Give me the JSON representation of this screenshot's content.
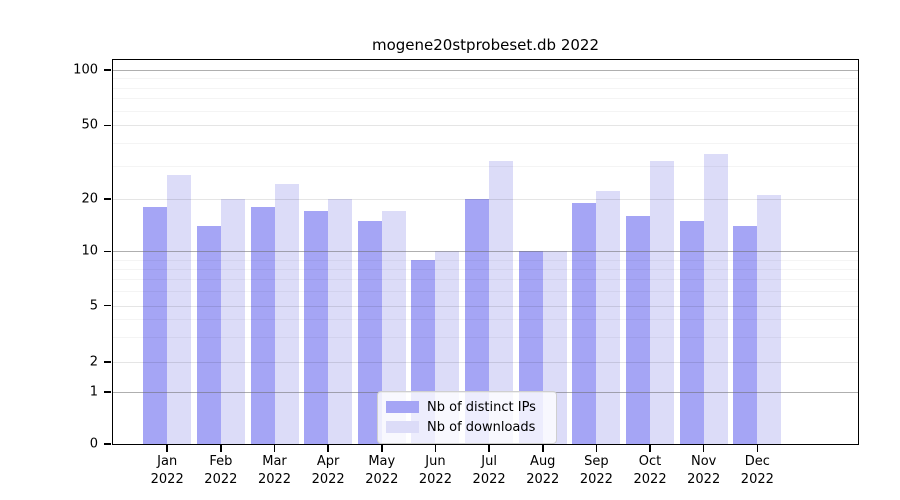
{
  "title": "mogene20stprobeset.db 2022",
  "colors": {
    "ips_bar": "#a5a5f5",
    "downloads_bar": "#dcdcf8",
    "frame": "#000000",
    "decade_gridline": "#9e9e9e",
    "sub_gridline": "#e6e6e6",
    "minor_gridline": "#f3f3f3"
  },
  "y_axis": {
    "tick_labels": [
      "100",
      "50",
      "20",
      "10",
      "5",
      "2",
      "1",
      "0"
    ]
  },
  "x_axis": {
    "year_line": "2022",
    "month_lines": [
      "Jan",
      "Feb",
      "Mar",
      "Apr",
      "May",
      "Jun",
      "Jul",
      "Aug",
      "Sep",
      "Oct",
      "Nov",
      "Dec"
    ]
  },
  "legend": {
    "items": [
      {
        "label": "Nb of distinct IPs",
        "color_key": "ips_bar"
      },
      {
        "label": "Nb of downloads",
        "color_key": "downloads_bar"
      }
    ]
  },
  "chart_data": {
    "type": "bar",
    "title": "mogene20stprobeset.db 2022",
    "categories": [
      "Jan 2022",
      "Feb 2022",
      "Mar 2022",
      "Apr 2022",
      "May 2022",
      "Jun 2022",
      "Jul 2022",
      "Aug 2022",
      "Sep 2022",
      "Oct 2022",
      "Nov 2022",
      "Dec 2022"
    ],
    "series": [
      {
        "name": "Nb of distinct IPs",
        "values": [
          18,
          14,
          18,
          17,
          15,
          9,
          20,
          10,
          19,
          16,
          15,
          14
        ]
      },
      {
        "name": "Nb of downloads",
        "values": [
          27,
          20,
          24,
          20,
          17,
          10,
          32,
          10,
          22,
          32,
          35,
          21
        ]
      }
    ],
    "ylabel": "",
    "xlabel": "",
    "yscale": "log-like",
    "y_ticks": [
      0,
      1,
      2,
      5,
      10,
      20,
      50,
      100
    ],
    "ylim": [
      0,
      100
    ],
    "grid": true,
    "legend_position": "bottom-center"
  }
}
